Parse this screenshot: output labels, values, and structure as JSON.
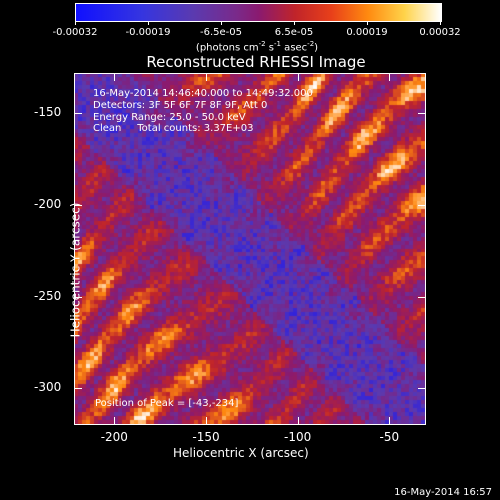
{
  "colorbar": {
    "ticks": [
      "-0.00032",
      "-0.00019",
      "-6.5e-05",
      "6.5e-05",
      "0.00019",
      "0.00032"
    ],
    "units_prefix": "(photons cm",
    "units_sup1": "-2",
    "units_mid1": " s",
    "units_sup2": "-1",
    "units_mid2": " asec",
    "units_sup3": "-2",
    "units_suffix": ")",
    "colors": [
      "#1010ff",
      "#5a3ab0",
      "#8a1a70",
      "#c0242a",
      "#ff8a10",
      "#ffffff"
    ]
  },
  "chart_data": {
    "type": "heatmap",
    "title": "Reconstructed RHESSI Image",
    "xlabel": "Heliocentric X (arcsec)",
    "ylabel": "Heliocentric Y (arcsec)",
    "xlim": [
      -222,
      -30
    ],
    "ylim": [
      -320,
      -128
    ],
    "x_ticks": [
      "-200",
      "-150",
      "-100",
      "-50"
    ],
    "x_tick_values": [
      -200,
      -150,
      -100,
      -50
    ],
    "y_ticks": [
      "-150",
      "-200",
      "-250",
      "-300"
    ],
    "y_tick_values": [
      -150,
      -200,
      -250,
      -300
    ],
    "colorbar_range": [
      -0.00032,
      0.00032
    ],
    "peak": [
      -43,
      -234
    ]
  },
  "info": {
    "line1": "16-May-2014 14:46:40.000 to 14:49:32.000",
    "line2": "Detectors: 3F 5F 6F 7F 8F 9F, Att 0",
    "line3": "Energy Range: 25.0 - 50.0 keV",
    "line4": "Clean     Total counts: 3.37E+03",
    "peak_text": "Position of Peak = [-43,-234]"
  },
  "timestamp": "16-May-2014 16:57"
}
